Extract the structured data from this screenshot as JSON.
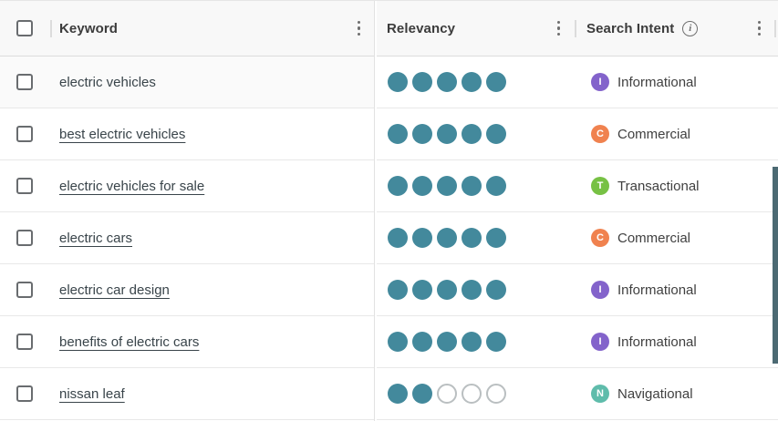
{
  "table": {
    "columns": {
      "keyword": "Keyword",
      "relevancy": "Relevancy",
      "search_intent": "Search Intent"
    },
    "relevancy_max": 5,
    "rows": [
      {
        "keyword": "electric vehicles",
        "link": false,
        "highlight": true,
        "relevancy": 5,
        "intent": "Informational",
        "intent_letter": "I",
        "intent_color": "#8363cb"
      },
      {
        "keyword": "best electric vehicles",
        "link": true,
        "highlight": false,
        "relevancy": 5,
        "intent": "Commercial",
        "intent_letter": "C",
        "intent_color": "#f0824f"
      },
      {
        "keyword": "electric vehicles for sale",
        "link": true,
        "highlight": false,
        "relevancy": 5,
        "intent": "Transactional",
        "intent_letter": "T",
        "intent_color": "#77c144"
      },
      {
        "keyword": "electric cars",
        "link": true,
        "highlight": false,
        "relevancy": 5,
        "intent": "Commercial",
        "intent_letter": "C",
        "intent_color": "#f0824f"
      },
      {
        "keyword": "electric car design",
        "link": true,
        "highlight": false,
        "relevancy": 5,
        "intent": "Informational",
        "intent_letter": "I",
        "intent_color": "#8363cb"
      },
      {
        "keyword": "benefits of electric cars",
        "link": true,
        "highlight": false,
        "relevancy": 5,
        "intent": "Informational",
        "intent_letter": "I",
        "intent_color": "#8363cb"
      },
      {
        "keyword": "nissan leaf",
        "link": true,
        "highlight": false,
        "relevancy": 2,
        "intent": "Navigational",
        "intent_letter": "N",
        "intent_color": "#5fbcab"
      }
    ]
  },
  "icons": {
    "column_menu": "kebab-menu-icon",
    "search_intent_help": "info-icon"
  },
  "colors": {
    "relevancy_filled": "#43899c",
    "relevancy_empty_border": "#babfc1",
    "scrollbar_thumb": "#4c6a73",
    "intent_informational": "#8363cb",
    "intent_commercial": "#f0824f",
    "intent_transactional": "#77c144",
    "intent_navigational": "#5fbcab"
  }
}
